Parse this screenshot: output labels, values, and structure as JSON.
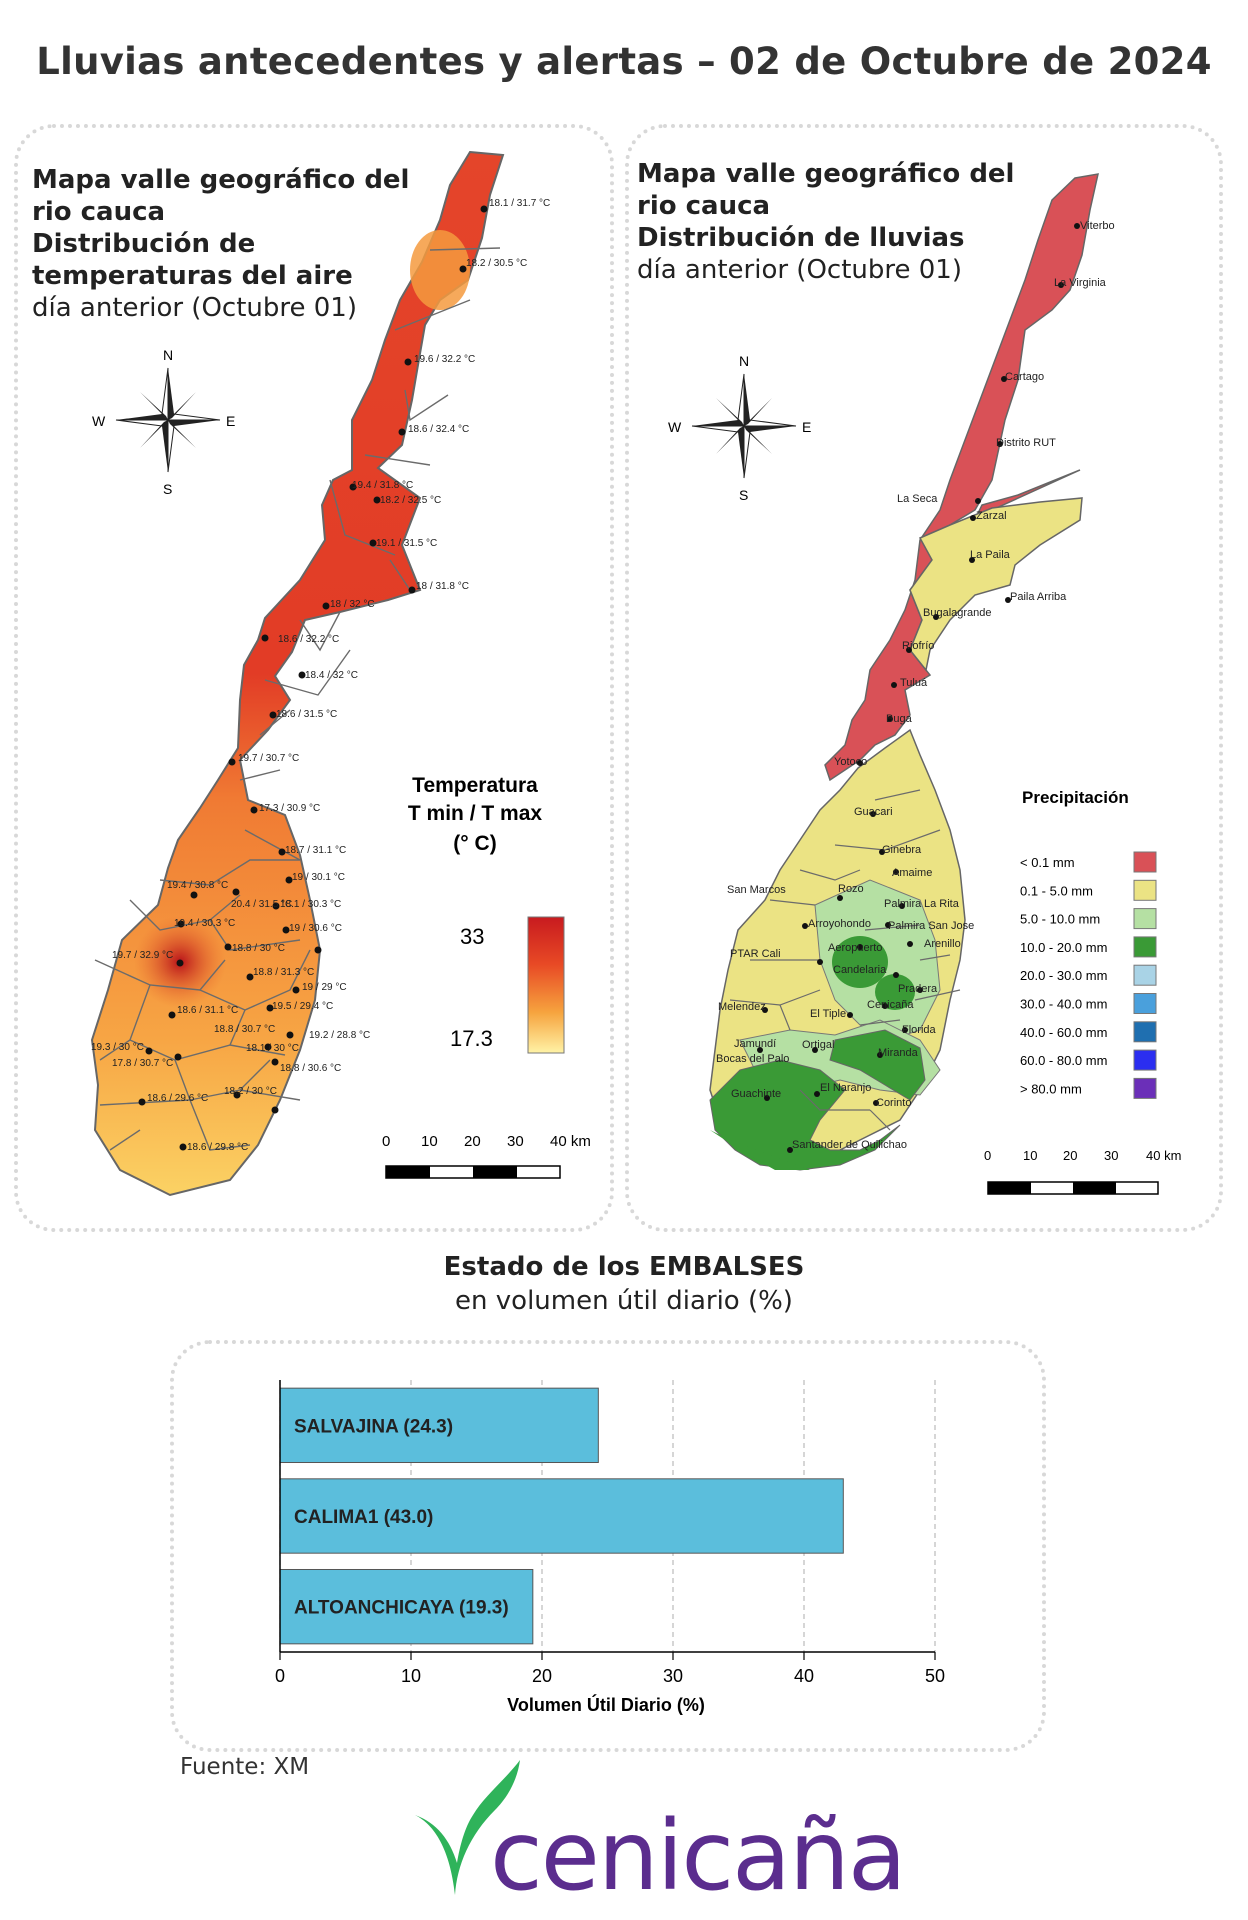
{
  "page": {
    "title": "Lluvias antecedentes y alertas – 02 de Octubre de 2024"
  },
  "temp_map": {
    "title_lines": [
      "Mapa valle geográfico del",
      "rio cauca",
      "Distribución de",
      "temperaturas del aire"
    ],
    "subtitle": "día anterior (Octubre 01)",
    "legend_title": [
      "Temperatura",
      "T min / T max",
      "(° C)"
    ],
    "legend_max": "33",
    "legend_min": "17.3",
    "scale_labels": [
      "0",
      "10",
      "20",
      "30",
      "40 km"
    ],
    "compass": {
      "n": "N",
      "s": "S",
      "e": "E",
      "w": "W"
    },
    "stations": [
      "18.1 / 31.7 °C",
      "18.2 / 30.5 °C",
      "19.6 / 32.2 °C",
      "18.6 / 32.4 °C",
      "19.4 / 31.8 °C",
      "18.2 / 32.5 °C",
      "19.1 / 31.5 °C",
      "18 / 31.8 °C",
      "18 / 32 °C",
      "18.6 / 32.2 °C",
      "18.4 / 32 °C",
      "18.6 / 31.5 °C",
      "19.7 / 30.7 °C",
      "17.3 / 30.9 °C",
      "18.7 / 31.1 °C",
      "19 / 30.1 °C",
      "19.4 / 30.8 °C",
      "20.4 / 31.5 °C",
      "18.1 / 30.3 °C",
      "19.4 / 30.3 °C",
      "19 / 30.6 °C",
      "18.8 / 30 °C",
      "19.7 / 32.9 °C",
      "18.8 / 31.3 °C",
      "19 / 29 °C",
      "19.5 / 29.4 °C",
      "18.6 / 31.1 °C",
      "18.8 / 30.7 °C",
      "19.2 / 28.8 °C",
      "19.3 / 30 °C",
      "18.1 / 30 °C",
      "17.8 / 30.7 °C",
      "18.8 / 30.6 °C",
      "18.6 / 29.6 °C",
      "18.2 / 30 °C",
      "18.6 / 29.8 °C"
    ]
  },
  "rain_map": {
    "title_lines": [
      "Mapa valle geográfico del",
      "rio cauca"
    ],
    "title_bold": "Distribución de lluvias",
    "subtitle": "día anterior (Octubre 01)",
    "legend_title": "Precipitación",
    "legend": [
      {
        "label": "< 0.1 mm",
        "color": "#d95157"
      },
      {
        "label": "0.1 - 5.0 mm",
        "color": "#ebe384"
      },
      {
        "label": "5.0 - 10.0 mm",
        "color": "#b5e0a3"
      },
      {
        "label": "10.0 - 20.0 mm",
        "color": "#3a9a36"
      },
      {
        "label": "20.0 - 30.0 mm",
        "color": "#a9d3e6"
      },
      {
        "label": "30.0 - 40.0 mm",
        "color": "#4aa0dc"
      },
      {
        "label": "40.0 - 60.0 mm",
        "color": "#1f6fb0"
      },
      {
        "label": "60.0 - 80.0 mm",
        "color": "#2b2ef0"
      },
      {
        "label": "> 80.0 mm",
        "color": "#6b2fb8"
      }
    ],
    "scale_labels": [
      "0",
      "10",
      "20",
      "30",
      "40 km"
    ],
    "compass": {
      "n": "N",
      "s": "S",
      "e": "E",
      "w": "W"
    },
    "places": [
      "Viterbo",
      "La Virginia",
      "Cartago",
      "Distrito RUT",
      "La Seca",
      "Zarzal",
      "La Paila",
      "Paila Arriba",
      "Bugalagrande",
      "Riofrío",
      "Tuluá",
      "Buga",
      "Yotoco",
      "Guacari",
      "Ginebra",
      "Amaime",
      "San Marcos",
      "Rozo",
      "Palmira",
      "La Rita",
      "Arroyohondo",
      "Palmira San Jose",
      "Aeropuerto",
      "Arenillo",
      "PTAR Cali",
      "Candelaria",
      "Pradera",
      "Cenicaña",
      "Melendez",
      "El Tiple",
      "Florida",
      "Jamundí",
      "Bocas del Palo",
      "Ortigal",
      "Miranda",
      "El Naranjo",
      "Guachinte",
      "Corinto",
      "Santander de Quilichao"
    ]
  },
  "reservoirs": {
    "title": "Estado de los EMBALSES",
    "subtitle": "en volumen útil diario (%)",
    "source": "Fuente: XM"
  },
  "chart_data": {
    "type": "bar",
    "orientation": "horizontal",
    "categories": [
      "SALVAJINA",
      "CALIMA1",
      "ALTOANCHICAYA"
    ],
    "values": [
      24.3,
      43.0,
      19.3
    ],
    "data_labels": [
      "SALVAJINA (24.3)",
      "CALIMA1 (43.0)",
      "ALTOANCHICAYA (19.3)"
    ],
    "xlabel": "Volumen Útil Diario (%)",
    "xlim": [
      0,
      50
    ],
    "xticks": [
      "0",
      "10",
      "20",
      "30",
      "40",
      "50"
    ],
    "grid": "vertical dashed",
    "bar_color": "#5bbedc"
  },
  "brand": {
    "name": "cenicaña",
    "leaf_color": "#2fb35a",
    "text_color": "#5b2d8e"
  }
}
